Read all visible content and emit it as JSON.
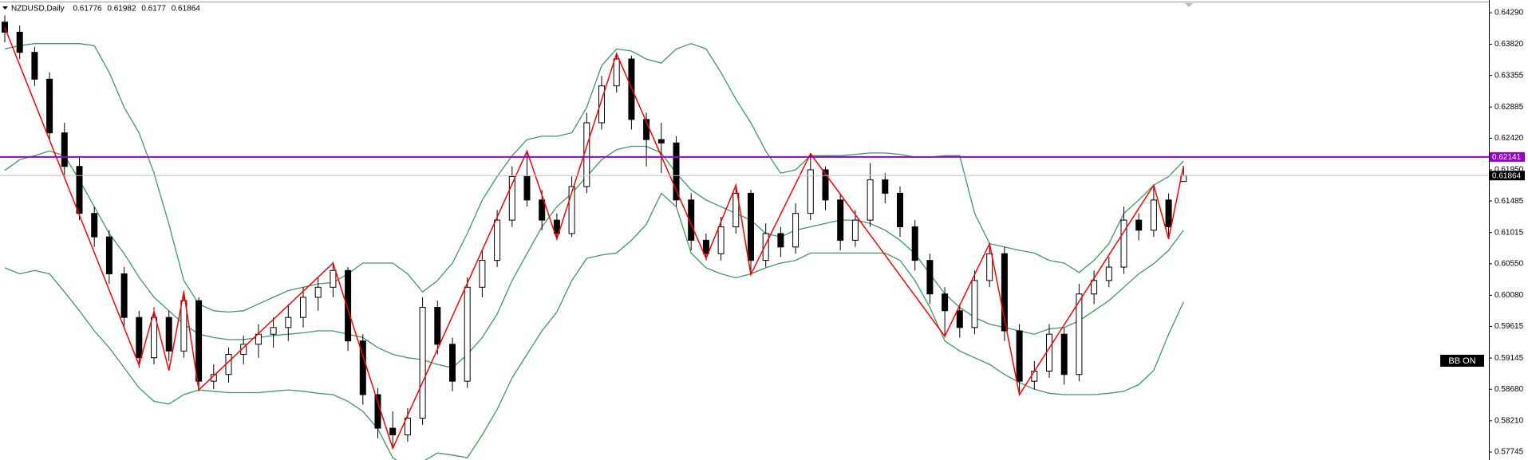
{
  "chart_data": {
    "type": "candlestick",
    "title": "NZDUSD,Daily",
    "ylim": [
      0.57626,
      0.64444
    ],
    "yticks": [
      {
        "value": 0.6429,
        "label": "0.64290"
      },
      {
        "value": 0.6382,
        "label": "0.63820"
      },
      {
        "value": 0.63355,
        "label": "0.63355"
      },
      {
        "value": 0.62885,
        "label": "0.62885"
      },
      {
        "value": 0.6242,
        "label": "0.62420"
      },
      {
        "value": 0.6195,
        "label": "0.61950"
      },
      {
        "value": 0.61485,
        "label": "0.61485"
      },
      {
        "value": 0.61015,
        "label": "0.61015"
      },
      {
        "value": 0.6055,
        "label": "0.60550"
      },
      {
        "value": 0.6008,
        "label": "0.60080"
      },
      {
        "value": 0.59615,
        "label": "0.59615"
      },
      {
        "value": 0.59145,
        "label": "0.59145"
      },
      {
        "value": 0.5868,
        "label": "0.58680"
      },
      {
        "value": 0.5821,
        "label": "0.58210"
      },
      {
        "value": 0.57745,
        "label": "0.57745"
      }
    ],
    "grid": false,
    "up_color": "#ffffff",
    "down_color": "#000000",
    "ohlc": [
      [
        0.6415,
        0.6425,
        0.6385,
        0.64
      ],
      [
        0.64,
        0.641,
        0.636,
        0.637
      ],
      [
        0.637,
        0.6378,
        0.632,
        0.633
      ],
      [
        0.633,
        0.634,
        0.624,
        0.625
      ],
      [
        0.625,
        0.6265,
        0.6185,
        0.62
      ],
      [
        0.62,
        0.6215,
        0.612,
        0.613
      ],
      [
        0.613,
        0.614,
        0.608,
        0.6095
      ],
      [
        0.6095,
        0.6105,
        0.6025,
        0.604
      ],
      [
        0.604,
        0.605,
        0.596,
        0.5975
      ],
      [
        0.5975,
        0.5985,
        0.59,
        0.5915
      ],
      [
        0.5915,
        0.599,
        0.5905,
        0.5975
      ],
      [
        0.5975,
        0.5985,
        0.591,
        0.5925
      ],
      [
        0.5925,
        0.6015,
        0.5915,
        0.6
      ],
      [
        0.6,
        0.6005,
        0.5865,
        0.588
      ],
      [
        0.588,
        0.5905,
        0.5868,
        0.589
      ],
      [
        0.589,
        0.593,
        0.5878,
        0.592
      ],
      [
        0.592,
        0.5948,
        0.5905,
        0.5935
      ],
      [
        0.5935,
        0.5965,
        0.5915,
        0.595
      ],
      [
        0.595,
        0.5975,
        0.593,
        0.596
      ],
      [
        0.596,
        0.5995,
        0.594,
        0.5975
      ],
      [
        0.5975,
        0.602,
        0.596,
        0.6005
      ],
      [
        0.6005,
        0.6035,
        0.5985,
        0.602
      ],
      [
        0.602,
        0.6058,
        0.6005,
        0.6045
      ],
      [
        0.6045,
        0.605,
        0.5925,
        0.594
      ],
      [
        0.594,
        0.595,
        0.5845,
        0.586
      ],
      [
        0.586,
        0.587,
        0.5795,
        0.581
      ],
      [
        0.581,
        0.5835,
        0.578,
        0.58
      ],
      [
        0.58,
        0.584,
        0.579,
        0.5825
      ],
      [
        0.5825,
        0.6005,
        0.5815,
        0.599
      ],
      [
        0.599,
        0.6,
        0.592,
        0.5935
      ],
      [
        0.5935,
        0.5945,
        0.5865,
        0.588
      ],
      [
        0.588,
        0.6035,
        0.587,
        0.602
      ],
      [
        0.602,
        0.6075,
        0.6005,
        0.606
      ],
      [
        0.606,
        0.6135,
        0.605,
        0.612
      ],
      [
        0.612,
        0.62,
        0.611,
        0.6185
      ],
      [
        0.6185,
        0.6222,
        0.614,
        0.615
      ],
      [
        0.615,
        0.6165,
        0.6105,
        0.612
      ],
      [
        0.612,
        0.613,
        0.609,
        0.61
      ],
      [
        0.61,
        0.6185,
        0.6095,
        0.617
      ],
      [
        0.617,
        0.628,
        0.616,
        0.6265
      ],
      [
        0.6265,
        0.6335,
        0.6255,
        0.632
      ],
      [
        0.632,
        0.6368,
        0.631,
        0.636
      ],
      [
        0.636,
        0.6365,
        0.6255,
        0.627
      ],
      [
        0.627,
        0.628,
        0.62,
        0.624
      ],
      [
        0.624,
        0.6265,
        0.619,
        0.6235
      ],
      [
        0.6235,
        0.6245,
        0.614,
        0.615
      ],
      [
        0.615,
        0.616,
        0.6075,
        0.609
      ],
      [
        0.609,
        0.61,
        0.606,
        0.607
      ],
      [
        0.607,
        0.6125,
        0.606,
        0.611
      ],
      [
        0.611,
        0.6172,
        0.61,
        0.616
      ],
      [
        0.616,
        0.6165,
        0.604,
        0.606
      ],
      [
        0.606,
        0.6115,
        0.605,
        0.61
      ],
      [
        0.61,
        0.611,
        0.6065,
        0.608
      ],
      [
        0.608,
        0.6145,
        0.607,
        0.613
      ],
      [
        0.613,
        0.622,
        0.612,
        0.6195
      ],
      [
        0.6195,
        0.62,
        0.6135,
        0.615
      ],
      [
        0.615,
        0.616,
        0.6075,
        0.609
      ],
      [
        0.609,
        0.6135,
        0.608,
        0.612
      ],
      [
        0.612,
        0.6205,
        0.611,
        0.618
      ],
      [
        0.618,
        0.619,
        0.6145,
        0.616
      ],
      [
        0.616,
        0.617,
        0.6095,
        0.611
      ],
      [
        0.611,
        0.612,
        0.6045,
        0.606
      ],
      [
        0.606,
        0.607,
        0.5995,
        0.601
      ],
      [
        0.601,
        0.602,
        0.5945,
        0.5985
      ],
      [
        0.5985,
        0.5995,
        0.5945,
        0.596
      ],
      [
        0.596,
        0.6045,
        0.595,
        0.603
      ],
      [
        0.603,
        0.6085,
        0.602,
        0.607
      ],
      [
        0.607,
        0.608,
        0.594,
        0.5955
      ],
      [
        0.5955,
        0.5965,
        0.586,
        0.588
      ],
      [
        0.588,
        0.591,
        0.5868,
        0.5895
      ],
      [
        0.5895,
        0.5965,
        0.5885,
        0.595
      ],
      [
        0.595,
        0.596,
        0.5875,
        0.589
      ],
      [
        0.589,
        0.6025,
        0.588,
        0.601
      ],
      [
        0.601,
        0.6045,
        0.5995,
        0.603
      ],
      [
        0.603,
        0.6065,
        0.602,
        0.605
      ],
      [
        0.605,
        0.614,
        0.604,
        0.612
      ],
      [
        0.612,
        0.613,
        0.609,
        0.6105
      ],
      [
        0.6105,
        0.6172,
        0.6095,
        0.615
      ],
      [
        0.615,
        0.616,
        0.6092,
        0.611
      ],
      [
        0.61776,
        0.61982,
        0.6177,
        0.61864
      ]
    ],
    "bands": {
      "color": "#3c9a5f",
      "upper": [
        0.6375,
        0.638,
        0.6383,
        0.6383,
        0.6383,
        0.6383,
        0.638,
        0.634,
        0.6288,
        0.625,
        0.619,
        0.6114,
        0.603,
        0.5995,
        0.5985,
        0.5983,
        0.5985,
        0.5995,
        0.6005,
        0.6015,
        0.602,
        0.6025,
        0.6027,
        0.604,
        0.6056,
        0.6056,
        0.6056,
        0.604,
        0.6013,
        0.603,
        0.6056,
        0.61,
        0.615,
        0.6185,
        0.6216,
        0.624,
        0.6245,
        0.6245,
        0.625,
        0.6288,
        0.635,
        0.6375,
        0.6372,
        0.636,
        0.6354,
        0.6375,
        0.6383,
        0.6375,
        0.634,
        0.63,
        0.6265,
        0.6223,
        0.619,
        0.6195,
        0.6216,
        0.6216,
        0.6216,
        0.6218,
        0.622,
        0.622,
        0.6218,
        0.6214,
        0.6214,
        0.6216,
        0.6216,
        0.613,
        0.6085,
        0.608,
        0.6075,
        0.6071,
        0.606,
        0.6056,
        0.6042,
        0.606,
        0.6085,
        0.613,
        0.615,
        0.6172,
        0.6185,
        0.6208
      ],
      "middle": [
        0.6194,
        0.621,
        0.6216,
        0.6223,
        0.6216,
        0.618,
        0.614,
        0.61,
        0.607,
        0.6035,
        0.6005,
        0.5985,
        0.5965,
        0.595,
        0.5945,
        0.5942,
        0.5942,
        0.5945,
        0.5948,
        0.595,
        0.5952,
        0.5955,
        0.5955,
        0.595,
        0.5945,
        0.593,
        0.592,
        0.5915,
        0.5912,
        0.5905,
        0.59,
        0.592,
        0.5945,
        0.598,
        0.603,
        0.607,
        0.611,
        0.614,
        0.616,
        0.6185,
        0.621,
        0.6225,
        0.623,
        0.623,
        0.622,
        0.619,
        0.6165,
        0.615,
        0.614,
        0.613,
        0.612,
        0.61,
        0.6095,
        0.6105,
        0.611,
        0.6115,
        0.612,
        0.612,
        0.6115,
        0.6105,
        0.609,
        0.607,
        0.604,
        0.601,
        0.599,
        0.5975,
        0.5965,
        0.596,
        0.5955,
        0.595,
        0.5958,
        0.596,
        0.597,
        0.5985,
        0.6,
        0.602,
        0.604,
        0.6055,
        0.6075,
        0.6105
      ],
      "lower": [
        0.6049,
        0.604,
        0.6045,
        0.604,
        0.6013,
        0.5985,
        0.5955,
        0.593,
        0.59,
        0.587,
        0.585,
        0.5846,
        0.586,
        0.5867,
        0.5865,
        0.5863,
        0.5863,
        0.5863,
        0.5865,
        0.5867,
        0.5865,
        0.5862,
        0.586,
        0.585,
        0.5835,
        0.5809,
        0.5766,
        0.5751,
        0.576,
        0.5773,
        0.577,
        0.5766,
        0.58,
        0.5838,
        0.5885,
        0.592,
        0.5955,
        0.5983,
        0.603,
        0.6063,
        0.6068,
        0.6071,
        0.609,
        0.6114,
        0.616,
        0.614,
        0.6071,
        0.6049,
        0.604,
        0.6034,
        0.604,
        0.6049,
        0.6056,
        0.606,
        0.6071,
        0.6071,
        0.6071,
        0.6071,
        0.6071,
        0.6071,
        0.606,
        0.603,
        0.599,
        0.594,
        0.5925,
        0.5915,
        0.5905,
        0.589,
        0.5878,
        0.5868,
        0.5862,
        0.586,
        0.586,
        0.586,
        0.5862,
        0.5865,
        0.5875,
        0.5896,
        0.595,
        0.5998
      ]
    },
    "zigzag": {
      "color": "#ff0000",
      "x": [
        0,
        9,
        10,
        11,
        12,
        13,
        22,
        26,
        35,
        37,
        41,
        47,
        49,
        50,
        54,
        63,
        66,
        68,
        77,
        78,
        79
      ],
      "values": [
        0.6407,
        0.5904,
        0.5984,
        0.5896,
        0.6013,
        0.5867,
        0.6056,
        0.578,
        0.6223,
        0.6092,
        0.6368,
        0.6063,
        0.6172,
        0.6039,
        0.6219,
        0.5947,
        0.6085,
        0.586,
        0.6172,
        0.6092,
        0.6201
      ]
    },
    "levels": [
      {
        "value": 0.62141,
        "color": "#9900cc"
      },
      {
        "value": 0.61864,
        "color": "#c0c0c0"
      }
    ],
    "badge": "BB ON"
  }
}
